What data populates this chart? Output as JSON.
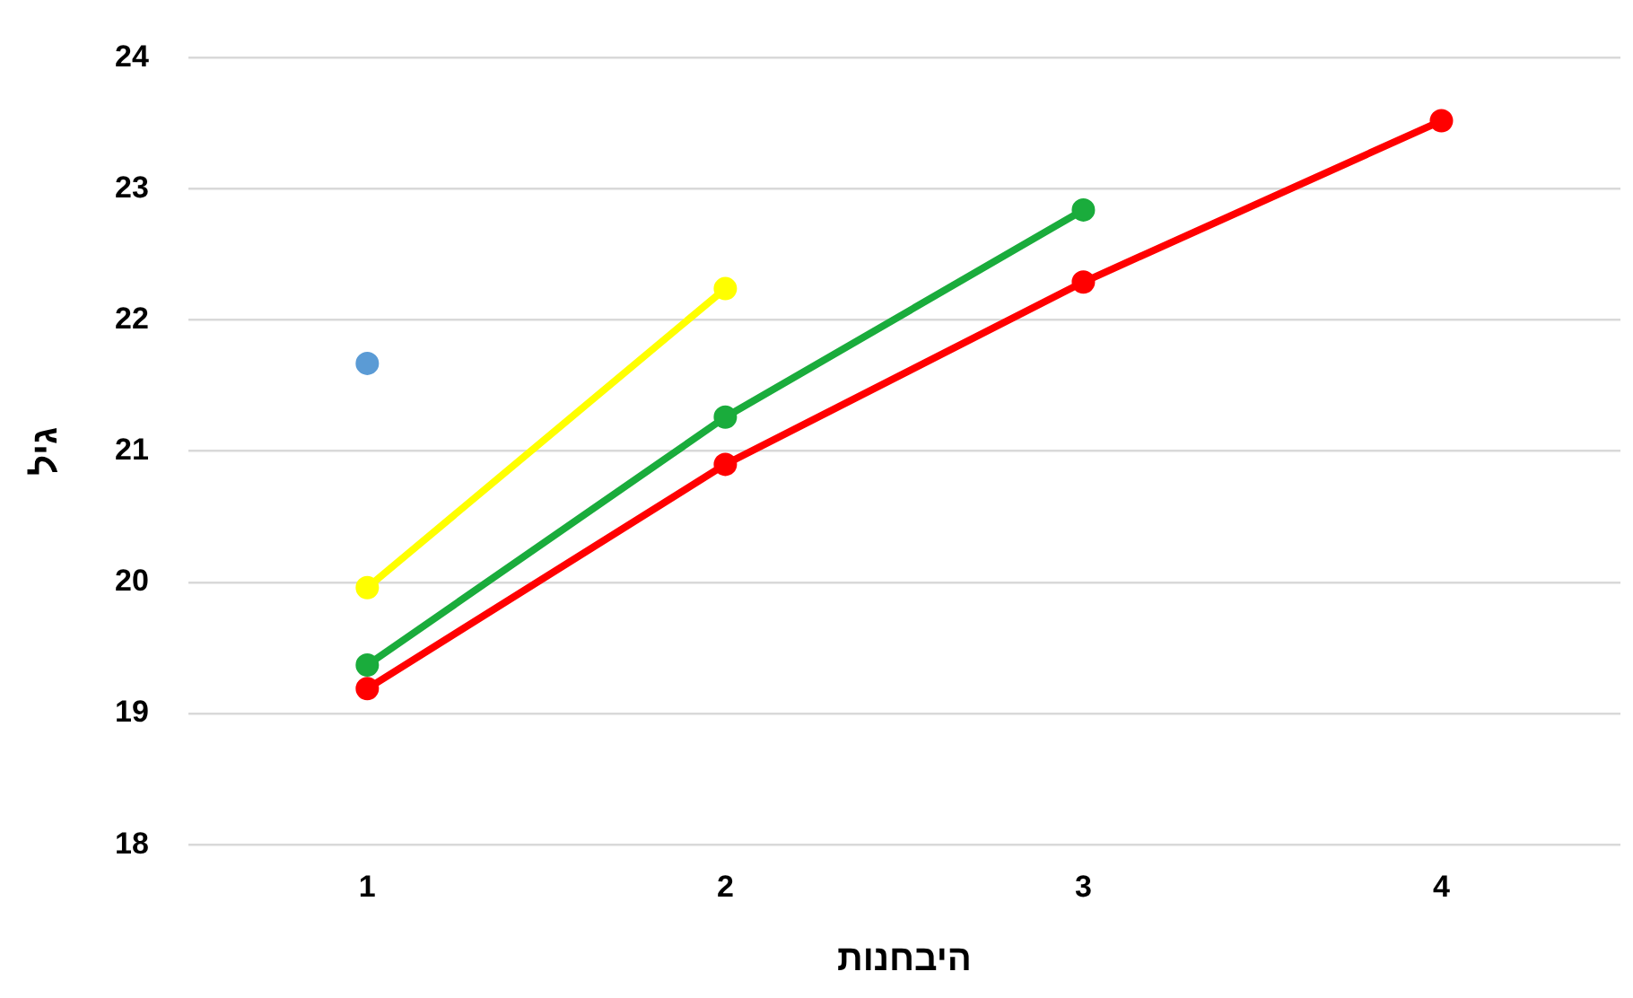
{
  "chart_data": {
    "type": "line",
    "xlabel": "היבחנות",
    "ylabel": "גיל",
    "categories": [
      "1",
      "2",
      "3",
      "4"
    ],
    "series": [
      {
        "type": "scatter",
        "color": "#5b9bd5",
        "values": [
          21.67,
          null,
          null,
          null
        ]
      },
      {
        "color": "#ffff00",
        "values": [
          19.96,
          22.24,
          null,
          null
        ]
      },
      {
        "color": "#1aac3c",
        "values": [
          19.37,
          21.26,
          22.84,
          null
        ]
      },
      {
        "color": "#ff0000",
        "values": [
          19.19,
          20.9,
          22.29,
          23.52
        ]
      }
    ],
    "ylim": [
      18,
      24
    ],
    "yticks": [
      18,
      19,
      20,
      21,
      22,
      23,
      24
    ],
    "grid": "y",
    "legend": false,
    "marker": "circle"
  }
}
